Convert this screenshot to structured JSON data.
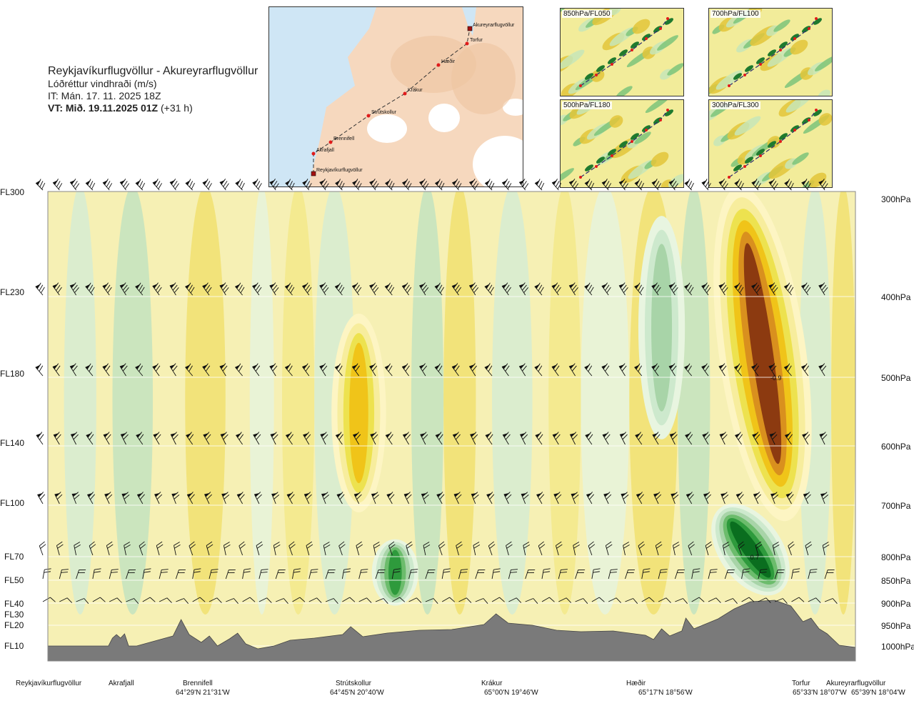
{
  "title": {
    "route": "Reykjavíkurflugvöllur - Akureyrarflugvöllur",
    "variable": "Lóðréttur vindhraði (m/s)",
    "issue": "IT: Mán. 17. 11. 2025 18Z",
    "valid_bold": "VT: Mið. 19.11.2025 01Z",
    "valid_offset": "(+31 h)"
  },
  "map_inset": {
    "stations": [
      "Akureyrarflugvöllur",
      "Torfur",
      "Hæðir",
      "Krákur",
      "Strútskollur",
      "Brennifell",
      "Akrafjall",
      "Reykjavíkurflugvöllur"
    ]
  },
  "small_maps": [
    {
      "label": "850hPa/FL050"
    },
    {
      "label": "700hPa/FL100"
    },
    {
      "label": "500hPa/FL180"
    },
    {
      "label": "300hPa/FL300"
    }
  ],
  "flight_levels": [
    "FL300",
    "FL230",
    "FL180",
    "FL140",
    "FL100",
    "FL70",
    "FL50",
    "FL40",
    "FL30",
    "FL20",
    "FL10"
  ],
  "pressure_levels": [
    "300hPa",
    "400hPa",
    "500hPa",
    "600hPa",
    "700hPa",
    "800hPa",
    "850hPa",
    "900hPa",
    "950hPa",
    "1000hPa"
  ],
  "locations": [
    {
      "name": "Reykjavíkurflugvöllur",
      "coord": ""
    },
    {
      "name": "Akrafjall",
      "coord": ""
    },
    {
      "name": "Brennifell",
      "coord": "64°29'N 21°31'W"
    },
    {
      "name": "Strútskollur",
      "coord": "64°45'N 20°40'W"
    },
    {
      "name": "Krákur",
      "coord": "65°00'N 19°46'W"
    },
    {
      "name": "Hæðir",
      "coord": "65°17'N 18°56'W"
    },
    {
      "name": "Torfur",
      "coord": "65°33'N 18°07'W"
    },
    {
      "name": "Akureyrarflugvöllur",
      "coord": "65°39'N 18°04'W"
    }
  ],
  "chart_data": {
    "type": "heatmap",
    "title": "Lóðréttur vindhraði (m/s)",
    "x_axis": {
      "type": "route",
      "stations": [
        "Reykjavíkurflugvöllur",
        "Akrafjall",
        "Brennifell",
        "Strútskollur",
        "Krákur",
        "Hæðir",
        "Torfur",
        "Akureyrarflugvöllur"
      ],
      "station_fraction": [
        0.0,
        0.085,
        0.19,
        0.385,
        0.575,
        0.76,
        0.945,
        1.0
      ]
    },
    "y_axis": {
      "flight_levels": [
        "FL300",
        "FL230",
        "FL180",
        "FL140",
        "FL100",
        "FL70",
        "FL50",
        "FL40",
        "FL30",
        "FL20",
        "FL10"
      ],
      "pressure_hpa": [
        300,
        400,
        500,
        600,
        700,
        800,
        850,
        900,
        950,
        1000
      ]
    },
    "annotations": [
      {
        "label": "-0.9",
        "route_fraction": 0.9,
        "pressure_hpa": 500
      },
      {
        "label": "0.7",
        "route_fraction": 0.875,
        "pressure_hpa": 800
      }
    ],
    "color_scale": {
      "negative": [
        "#fdf5c3",
        "#f7ed9d",
        "#ede24f",
        "#f0c419",
        "#d9901e",
        "#8c3a10"
      ],
      "positive": [
        "#e8f5e0",
        "#cde9cd",
        "#a8d4a8",
        "#6cbc6c",
        "#2e9a3c",
        "#0a6e1f"
      ]
    },
    "features": [
      {
        "sign": "negative",
        "route_from": 0.84,
        "route_to": 0.93,
        "p_top": 300,
        "p_bottom": 720,
        "intensity": 6
      },
      {
        "sign": "positive",
        "route_from": 0.84,
        "route_to": 0.9,
        "p_top": 700,
        "p_bottom": 880,
        "intensity": 6
      },
      {
        "sign": "positive",
        "route_from": 0.41,
        "route_to": 0.45,
        "p_top": 780,
        "p_bottom": 890,
        "intensity": 5
      },
      {
        "sign": "negative",
        "route_from": 0.36,
        "route_to": 0.41,
        "p_top": 430,
        "p_bottom": 700,
        "intensity": 4
      },
      {
        "sign": "positive",
        "route_from": 0.74,
        "route_to": 0.78,
        "p_top": 330,
        "p_bottom": 580,
        "intensity": 3
      }
    ],
    "wind_barb_rows_hpa": [
      300,
      400,
      500,
      600,
      700,
      800,
      850,
      900
    ],
    "grid": true
  },
  "colors": {
    "terrain": "#7a7a7a",
    "frame": "#888888",
    "route": "#333333",
    "station_dot": "#e01b1b"
  }
}
